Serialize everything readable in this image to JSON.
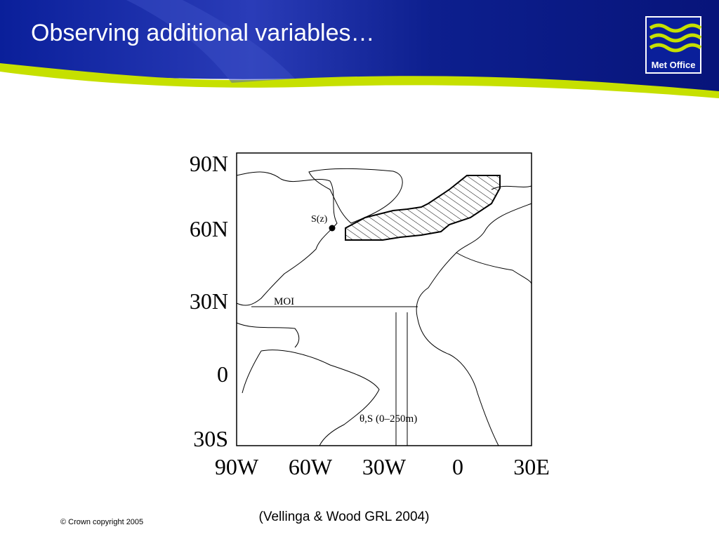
{
  "header": {
    "title": "Observing additional variables…",
    "logo": "Met Office"
  },
  "figure": {
    "y_labels": [
      "90N",
      "60N",
      "30N",
      "0",
      "30S"
    ],
    "x_labels": [
      "90W",
      "60W",
      "30W",
      "0",
      "30E"
    ],
    "annotations": [
      "S(z)",
      "MOI",
      "θ,S (0–250m)"
    ],
    "caption": "(Vellinga & Wood GRL 2004)"
  },
  "footer": {
    "copyright": "© Crown copyright 2005"
  }
}
